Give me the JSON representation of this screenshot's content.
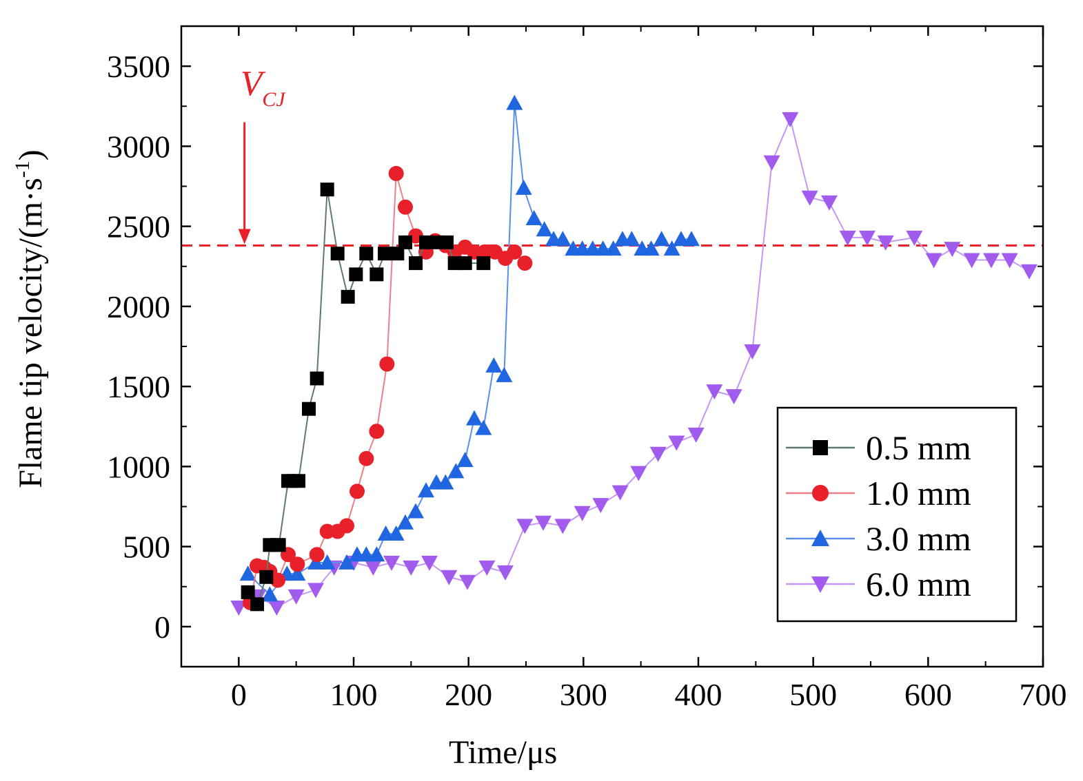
{
  "chart_data": {
    "type": "line",
    "title": "",
    "xlabel": "Time/μs",
    "ylabel_main": "Flame tip velocity/(m·s",
    "ylabel_sup": "-1",
    "ylabel_close": ")",
    "xlim": [
      -50,
      700
    ],
    "ylim": [
      -250,
      3750
    ],
    "xticks": [
      0,
      100,
      200,
      300,
      400,
      500,
      600,
      700
    ],
    "yticks": [
      0,
      500,
      1000,
      1500,
      2000,
      2500,
      3000,
      3500
    ],
    "xtick_labels": [
      "0",
      "100",
      "200",
      "300",
      "400",
      "500",
      "600",
      "700"
    ],
    "ytick_labels": [
      "0",
      "500",
      "1000",
      "1500",
      "2000",
      "2500",
      "3000",
      "3500"
    ],
    "reference_line": {
      "label_main": "V",
      "label_sub": "CJ",
      "value": 2380,
      "arrow_x": 5,
      "arrow_from": 3150,
      "color": "#e8202a"
    },
    "legend_position": "lower-right",
    "series": [
      {
        "name": "0.5 mm",
        "marker": "square",
        "color": "#000000",
        "line_color": "#5e7a6e",
        "x": [
          8,
          16,
          24,
          27,
          33,
          35,
          43,
          47,
          52,
          61,
          68,
          77,
          86,
          95,
          102,
          111,
          120,
          127,
          138,
          145,
          154,
          163,
          172,
          181,
          188,
          197,
          213
        ],
        "y": [
          215,
          140,
          310,
          510,
          510,
          510,
          910,
          910,
          910,
          1360,
          1550,
          2730,
          2330,
          2060,
          2200,
          2330,
          2200,
          2330,
          2330,
          2400,
          2270,
          2400,
          2400,
          2400,
          2270,
          2270,
          2270
        ]
      },
      {
        "name": "1.0 mm",
        "marker": "circle",
        "color": "#e8202a",
        "line_color": "#f07e8a",
        "x": [
          10,
          16,
          22,
          27,
          34,
          43,
          51,
          68,
          77,
          86,
          94,
          103,
          111,
          120,
          129,
          137,
          145,
          154,
          163,
          171,
          180,
          188,
          197,
          205,
          214,
          223,
          232,
          240,
          249
        ],
        "y": [
          150,
          380,
          370,
          345,
          290,
          450,
          390,
          450,
          595,
          595,
          630,
          845,
          1050,
          1220,
          1640,
          2830,
          2620,
          2440,
          2340,
          2410,
          2380,
          2340,
          2370,
          2340,
          2340,
          2340,
          2300,
          2340,
          2270
        ]
      },
      {
        "name": "3.0 mm",
        "marker": "triangle-up",
        "color": "#1f66e0",
        "line_color": "#5a8ee8",
        "x": [
          8,
          27,
          42,
          51,
          67,
          77,
          94,
          103,
          111,
          120,
          128,
          137,
          145,
          154,
          163,
          172,
          180,
          189,
          197,
          205,
          213,
          222,
          231,
          240,
          248,
          257,
          266,
          274,
          282,
          291,
          299,
          308,
          317,
          326,
          334,
          342,
          351,
          359,
          368,
          377,
          385,
          394
        ],
        "y": [
          330,
          200,
          330,
          330,
          400,
          400,
          400,
          450,
          450,
          450,
          580,
          580,
          650,
          720,
          850,
          900,
          900,
          970,
          1040,
          1300,
          1240,
          1630,
          1570,
          3270,
          2740,
          2550,
          2480,
          2420,
          2420,
          2360,
          2360,
          2360,
          2360,
          2360,
          2420,
          2420,
          2360,
          2360,
          2420,
          2360,
          2420,
          2420
        ]
      },
      {
        "name": "6.0 mm",
        "marker": "triangle-down",
        "color": "#a25ced",
        "line_color": "#c497f2",
        "x": [
          0,
          17,
          33,
          50,
          67,
          83,
          100,
          117,
          133,
          150,
          166,
          183,
          199,
          216,
          232,
          249,
          265,
          282,
          299,
          315,
          332,
          348,
          365,
          381,
          398,
          414,
          431,
          447,
          464,
          480,
          497,
          514,
          530,
          547,
          563,
          588,
          605,
          621,
          638,
          655,
          671,
          688
        ],
        "y": [
          120,
          190,
          120,
          190,
          230,
          370,
          400,
          370,
          400,
          370,
          400,
          310,
          280,
          370,
          340,
          630,
          650,
          630,
          710,
          760,
          840,
          960,
          1080,
          1150,
          1200,
          1470,
          1440,
          1720,
          2900,
          3170,
          2680,
          2650,
          2430,
          2430,
          2400,
          2430,
          2290,
          2360,
          2290,
          2290,
          2290,
          2220
        ]
      }
    ]
  }
}
